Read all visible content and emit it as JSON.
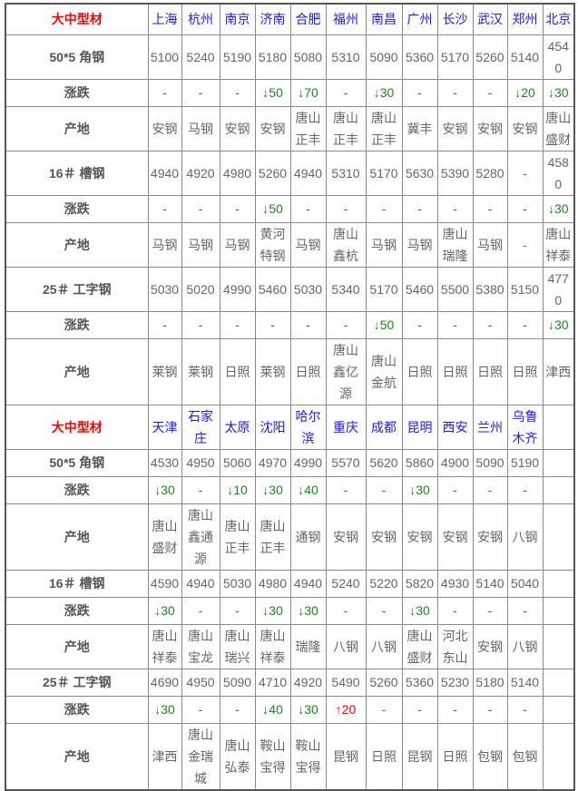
{
  "sections": [
    {
      "title": "大中型材",
      "cities": [
        "上海",
        "杭州",
        "南京",
        "济南",
        "合肥",
        "福州",
        "南昌",
        "广州",
        "长沙",
        "武汉",
        "郑州",
        "北京"
      ],
      "products": [
        {
          "name": "50*5 角钢",
          "prices": [
            "5100",
            "5240",
            "5190",
            "5180",
            "5080",
            "5310",
            "5090",
            "5360",
            "5170",
            "5260",
            "5140",
            "4540"
          ],
          "change_label": "涨跌",
          "changes": [
            "-",
            "-",
            "-",
            "↓50",
            "↓70",
            "-",
            "↓30",
            "-",
            "-",
            "-",
            "↓20",
            "↓30"
          ],
          "origin_label": "产地",
          "origins": [
            "安钢",
            "马钢",
            "安钢",
            "安钢",
            "唐山正丰",
            "唐山正丰",
            "唐山正丰",
            "冀丰",
            "安钢",
            "安钢",
            "安钢",
            "唐山盛财"
          ]
        },
        {
          "name": "16＃ 槽钢",
          "prices": [
            "4940",
            "4920",
            "4980",
            "5260",
            "4940",
            "5310",
            "5170",
            "5630",
            "5390",
            "5280",
            "-",
            "4580"
          ],
          "change_label": "涨跌",
          "changes": [
            "-",
            "-",
            "-",
            "↓50",
            "-",
            "-",
            "-",
            "-",
            "-",
            "-",
            "-",
            "↓30"
          ],
          "origin_label": "产地",
          "origins": [
            "马钢",
            "马钢",
            "马钢",
            "黄河特钢",
            "马钢",
            "唐山鑫杭",
            "马钢",
            "马钢",
            "唐山瑞隆",
            "马钢",
            "-",
            "唐山祥泰"
          ]
        },
        {
          "name": "25＃ 工字钢",
          "prices": [
            "5030",
            "5020",
            "4990",
            "5460",
            "5030",
            "5340",
            "5170",
            "5460",
            "5500",
            "5380",
            "5150",
            "4770"
          ],
          "change_label": "涨跌",
          "changes": [
            "-",
            "-",
            "-",
            "-",
            "-",
            "-",
            "↓50",
            "-",
            "-",
            "-",
            "-",
            "↓30"
          ],
          "origin_label": "产地",
          "origins": [
            "莱钢",
            "莱钢",
            "日照",
            "莱钢",
            "日照",
            "唐山鑫亿源",
            "唐山金航",
            "日照",
            "日照",
            "日照",
            "日照",
            "津西"
          ]
        }
      ]
    },
    {
      "title": "大中型材",
      "cities": [
        "天津",
        "石家庄",
        "太原",
        "沈阳",
        "哈尔滨",
        "重庆",
        "成都",
        "昆明",
        "西安",
        "兰州",
        "乌鲁木齐",
        ""
      ],
      "products": [
        {
          "name": "50*5 角钢",
          "prices": [
            "4530",
            "4950",
            "5060",
            "4970",
            "4990",
            "5570",
            "5620",
            "5860",
            "4900",
            "5090",
            "5190",
            ""
          ],
          "change_label": "涨跌",
          "changes": [
            "↓30",
            "-",
            "↓10",
            "↓30",
            "↓40",
            "-",
            "-",
            "↓30",
            "-",
            "-",
            "-",
            ""
          ],
          "origin_label": "产地",
          "origins": [
            "唐山盛财",
            "唐山鑫通源",
            "唐山正丰",
            "唐山正丰",
            "通钢",
            "安钢",
            "安钢",
            "安钢",
            "安钢",
            "安钢",
            "八钢",
            ""
          ]
        },
        {
          "name": "16＃ 槽钢",
          "prices": [
            "4590",
            "4940",
            "5030",
            "4980",
            "4940",
            "5240",
            "5220",
            "5820",
            "4930",
            "5140",
            "5040",
            ""
          ],
          "change_label": "涨跌",
          "changes": [
            "↓30",
            "-",
            "-",
            "↓30",
            "↓30",
            "-",
            "-",
            "↓30",
            "-",
            "-",
            "-",
            ""
          ],
          "origin_label": "产地",
          "origins": [
            "唐山祥泰",
            "唐山宝龙",
            "唐山瑞兴",
            "唐山祥泰",
            "瑞隆",
            "八钢",
            "八钢",
            "唐山盛财",
            "河北东山",
            "安钢",
            "八钢",
            ""
          ]
        },
        {
          "name": "25＃ 工字钢",
          "prices": [
            "4690",
            "4950",
            "5090",
            "4710",
            "4920",
            "5490",
            "5260",
            "5360",
            "5230",
            "5180",
            "5140",
            ""
          ],
          "change_label": "涨跌",
          "changes": [
            "↓30",
            "-",
            "-",
            "↓40",
            "↓30",
            "↑20",
            "-",
            "-",
            "-",
            "-",
            "-",
            ""
          ],
          "origin_label": "产地",
          "origins": [
            "津西",
            "唐山金瑞城",
            "唐山弘泰",
            "鞍山宝得",
            "鞍山宝得",
            "昆钢",
            "日照",
            "昆钢",
            "日照",
            "包钢",
            "包钢",
            ""
          ]
        }
      ]
    }
  ],
  "colors": {
    "title": "#ff0000",
    "city": "#1a1aff",
    "down": "#1b8a1b",
    "up": "#ff0000",
    "text": "#666666"
  }
}
